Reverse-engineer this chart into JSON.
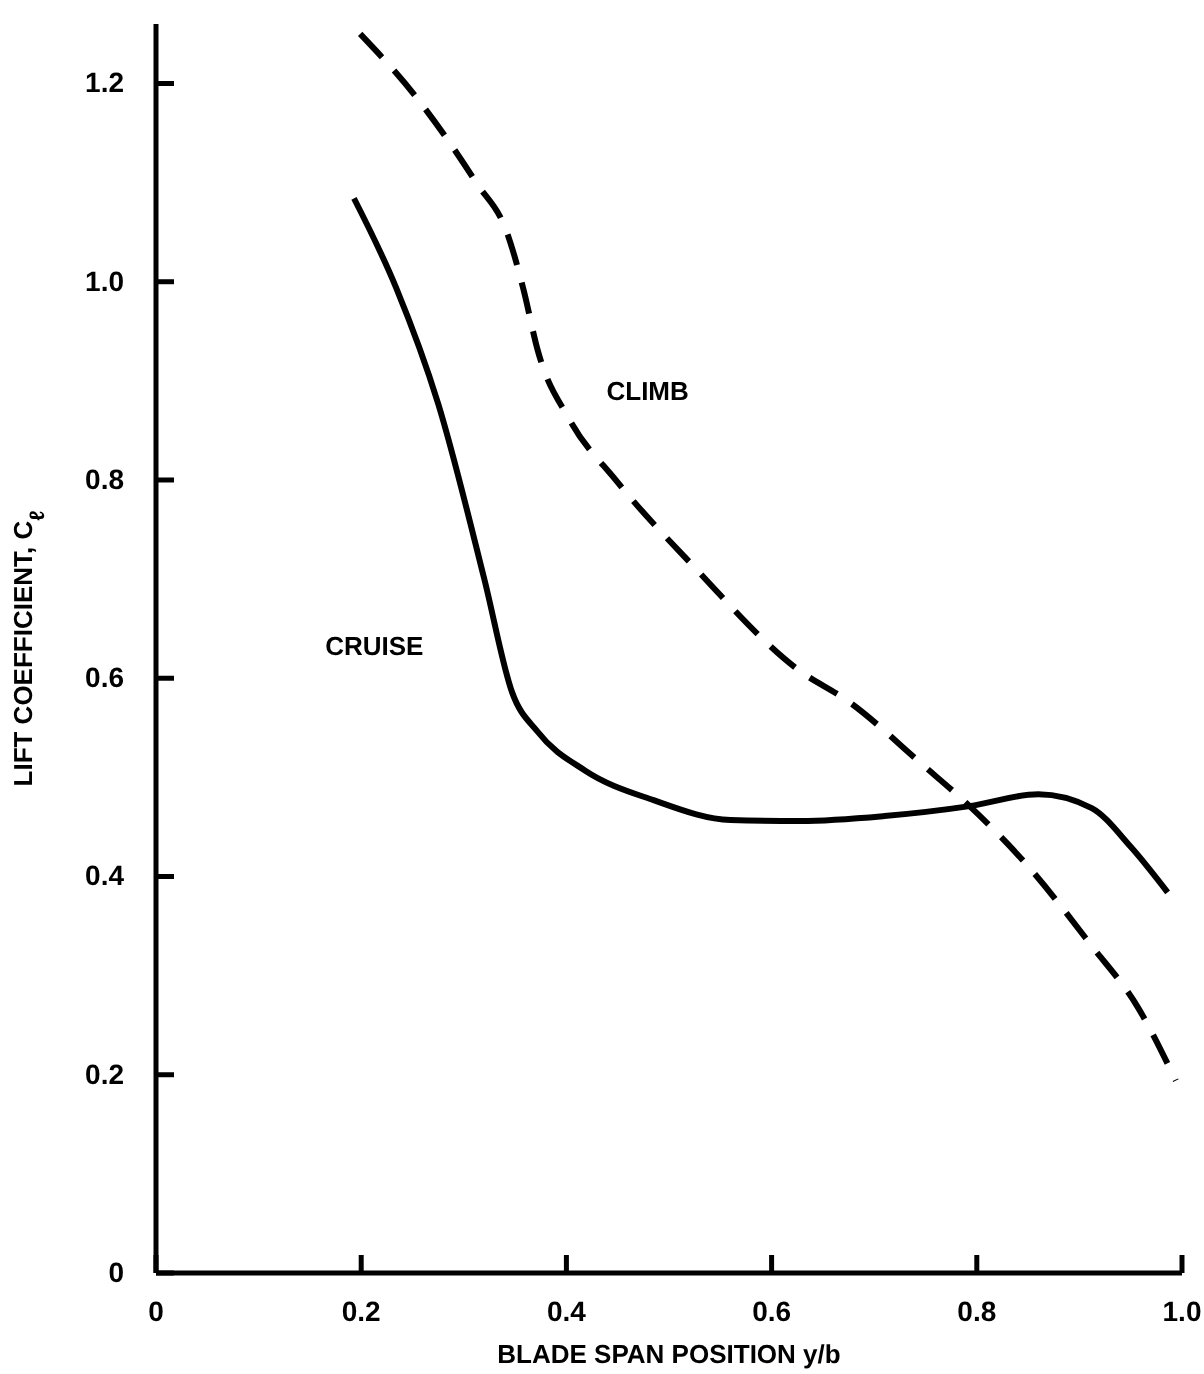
{
  "chart_data": {
    "type": "line",
    "xlabel": "BLADE SPAN POSITION  y/b",
    "ylabel": "LIFT COEFFICIENT, C$_{ℓ}$",
    "xlim": [
      0,
      1.0
    ],
    "xticks": [
      0,
      0.2,
      0.4,
      0.6,
      0.8,
      {
        "value": 1.0,
        "label": "1.0"
      }
    ],
    "ylim": [
      0,
      1.26
    ],
    "yticks": [
      0,
      0.2,
      0.4,
      0.6,
      0.8,
      {
        "value": 1.0,
        "label": "1.0"
      },
      1.2
    ],
    "grid": false,
    "legend": false,
    "series": [
      {
        "name": "CRUISE",
        "color": "#000000",
        "line_style": "solid",
        "x": [
          0.193,
          0.234,
          0.275,
          0.32,
          0.347,
          0.372,
          0.418,
          0.485,
          0.56,
          0.628,
          0.71,
          0.793,
          0.86,
          0.912,
          0.95,
          0.986
        ],
        "values": [
          1.084,
          0.994,
          0.877,
          0.7,
          0.586,
          0.546,
          0.507,
          0.477,
          0.457,
          0.456,
          0.461,
          0.471,
          0.483,
          0.469,
          0.43,
          0.384
        ]
      },
      {
        "name": "CLIMB",
        "color": "#000000",
        "line_style": "dashed",
        "x": [
          0.199,
          0.253,
          0.312,
          0.343,
          0.358,
          0.372,
          0.403,
          0.448,
          0.522,
          0.628,
          0.673,
          0.748,
          0.793,
          0.846,
          0.912,
          0.957,
          0.994
        ],
        "values": [
          1.25,
          1.187,
          1.1,
          1.047,
          0.993,
          0.931,
          0.861,
          0.8,
          0.715,
          0.607,
          0.578,
          0.512,
          0.471,
          0.415,
          0.33,
          0.268,
          0.194
        ]
      }
    ]
  }
}
